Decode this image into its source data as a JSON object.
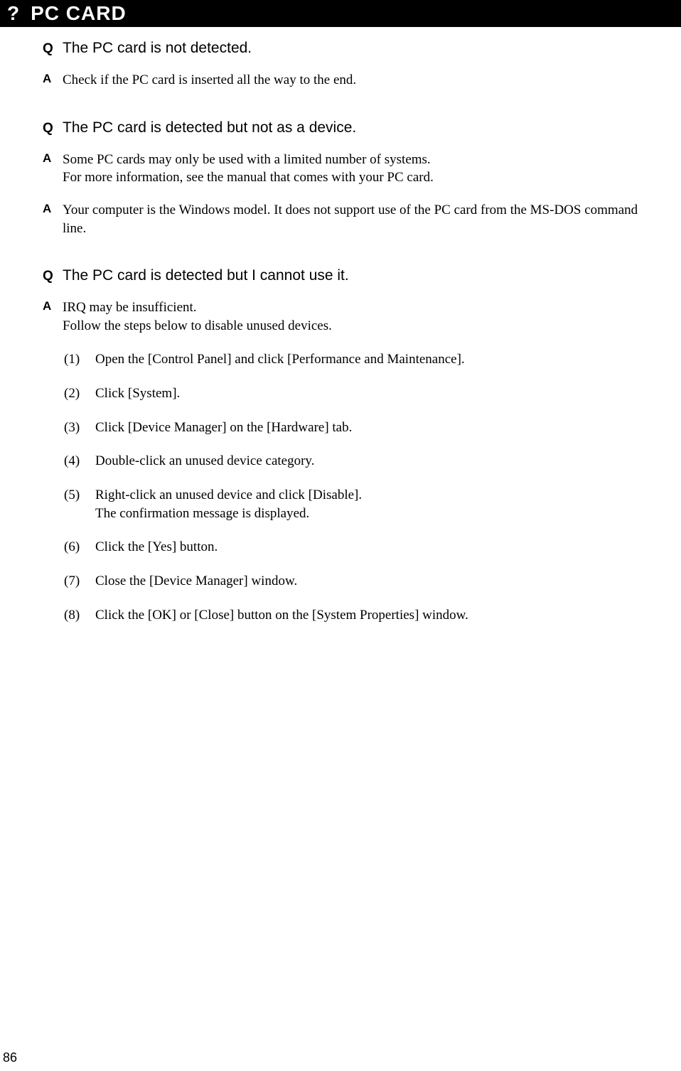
{
  "header": {
    "mark": "?",
    "title": "PC CARD"
  },
  "sections": [
    {
      "question": "The PC card is not detected.",
      "answers": [
        {
          "text": "Check if the PC card is inserted all the way to the end."
        }
      ]
    },
    {
      "question": "The PC card is detected but not as a device.",
      "answers": [
        {
          "text": "Some PC cards may only be used with a limited number of systems.\nFor more information, see the manual that comes with your PC card."
        },
        {
          "text": "Your computer is the Windows model. It does not support use of the PC card from the MS-DOS command line."
        }
      ]
    },
    {
      "question": "The PC card is detected but I cannot use it.",
      "answers": [
        {
          "text": "IRQ may be insufficient.\nFollow the steps below to disable unused devices."
        }
      ],
      "steps": [
        {
          "n": "(1)",
          "t": "Open the [Control Panel] and click [Performance and Maintenance]."
        },
        {
          "n": "(2)",
          "t": "Click [System]."
        },
        {
          "n": "(3)",
          "t": "Click [Device Manager] on the [Hardware] tab."
        },
        {
          "n": "(4)",
          "t": "Double-click an unused device category."
        },
        {
          "n": "(5)",
          "t": "Right-click an unused device and click [Disable].\nThe confirmation message is displayed."
        },
        {
          "n": "(6)",
          "t": "Click the [Yes] button."
        },
        {
          "n": "(7)",
          "t": "Close the [Device Manager] window."
        },
        {
          "n": "(8)",
          "t": "Click the [OK] or [Close] button on the [System Properties] window."
        }
      ]
    }
  ],
  "pageNumber": "86"
}
